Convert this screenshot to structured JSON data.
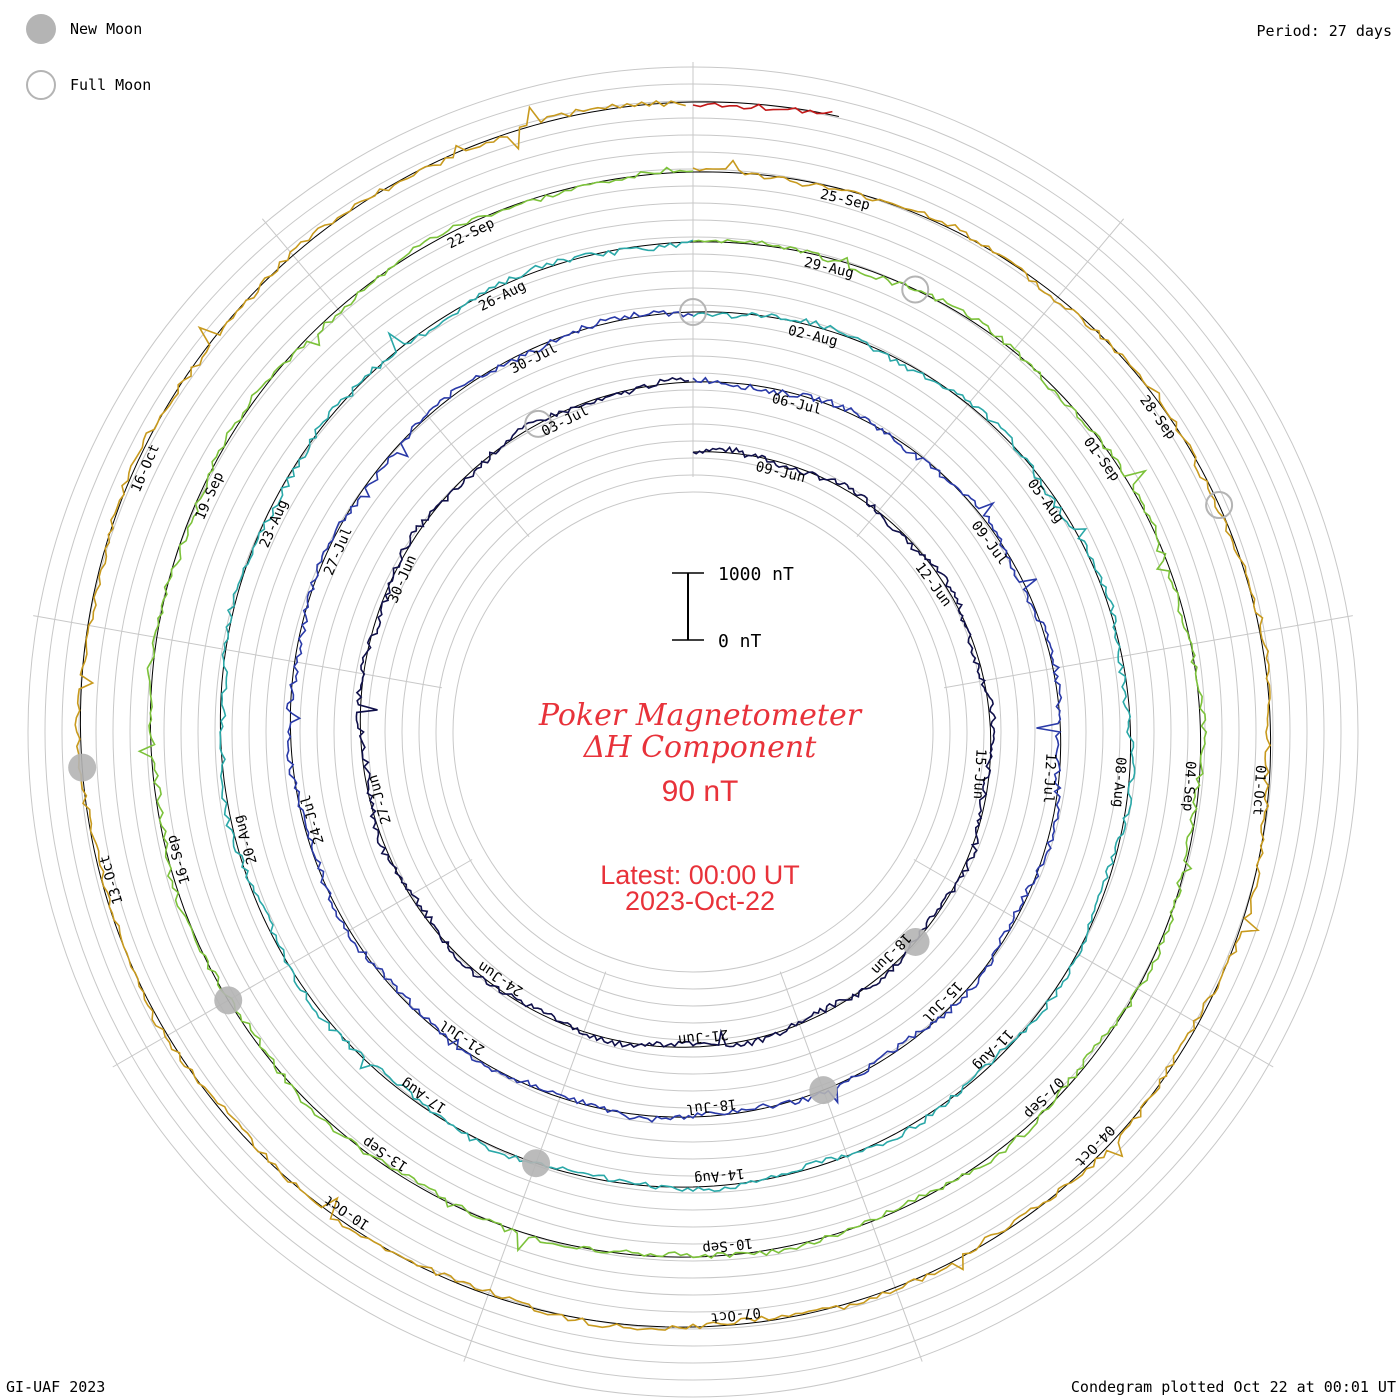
{
  "legend": {
    "new_moon": "New Moon",
    "full_moon": "Full Moon"
  },
  "period": "Period: 27 days",
  "title": {
    "line1": "Poker Magnetometer",
    "line2": "ΔH Component",
    "line3": "90 nT"
  },
  "latest": {
    "line1": "Latest: 00:00 UT",
    "line2": "2023-Oct-22"
  },
  "scale": {
    "top_label": "1000 nT",
    "bottom_label": "0 nT"
  },
  "footer": {
    "credit": "GI-UAF 2023",
    "plotted": "Condegram plotted Oct 22 at 00:01 UT"
  },
  "chart_data": {
    "type": "line",
    "subtype": "condegram (spiral time plot)",
    "period_days": 27,
    "start_date": "2023-06-08",
    "end_date": "2023-10-22",
    "turns": [
      {
        "turn": 1,
        "color": "#10104a",
        "date_labels": [
          "09-Jun",
          "12-Jun",
          "15-Jun",
          "18-Jun",
          "21-Jun",
          "24-Jun",
          "27-Jun",
          "30-Jun",
          "03-Jul"
        ]
      },
      {
        "turn": 2,
        "color": "#2a3aa8",
        "date_labels": [
          "06-Jul",
          "09-Jul",
          "12-Jul",
          "15-Jul",
          "18-Jul",
          "21-Jul",
          "24-Jul",
          "27-Jul",
          "30-Jul"
        ]
      },
      {
        "turn": 3,
        "color": "#2aa8a8",
        "date_labels": [
          "02-Aug",
          "05-Aug",
          "08-Aug",
          "11-Aug",
          "14-Aug",
          "17-Aug",
          "20-Aug",
          "23-Aug",
          "26-Aug"
        ]
      },
      {
        "turn": 4,
        "color": "#7cc23a",
        "date_labels": [
          "29-Aug",
          "01-Sep",
          "04-Sep",
          "07-Sep",
          "10-Sep",
          "13-Sep",
          "16-Sep",
          "19-Sep",
          "22-Sep"
        ]
      },
      {
        "turn": 5,
        "color": "#c89a1e",
        "date_labels": [
          "25-Sep",
          "28-Sep",
          "01-Oct",
          "04-Oct",
          "07-Oct",
          "10-Oct",
          "13-Oct",
          "16-Oct"
        ]
      },
      {
        "turn": 6,
        "color": "#c21818",
        "date_labels": []
      }
    ],
    "new_moons": [
      "2023-06-18",
      "2023-07-17",
      "2023-08-16",
      "2023-09-15",
      "2023-10-14"
    ],
    "full_moons": [
      "2023-07-03",
      "2023-08-01",
      "2023-08-30",
      "2023-09-29"
    ]
  }
}
